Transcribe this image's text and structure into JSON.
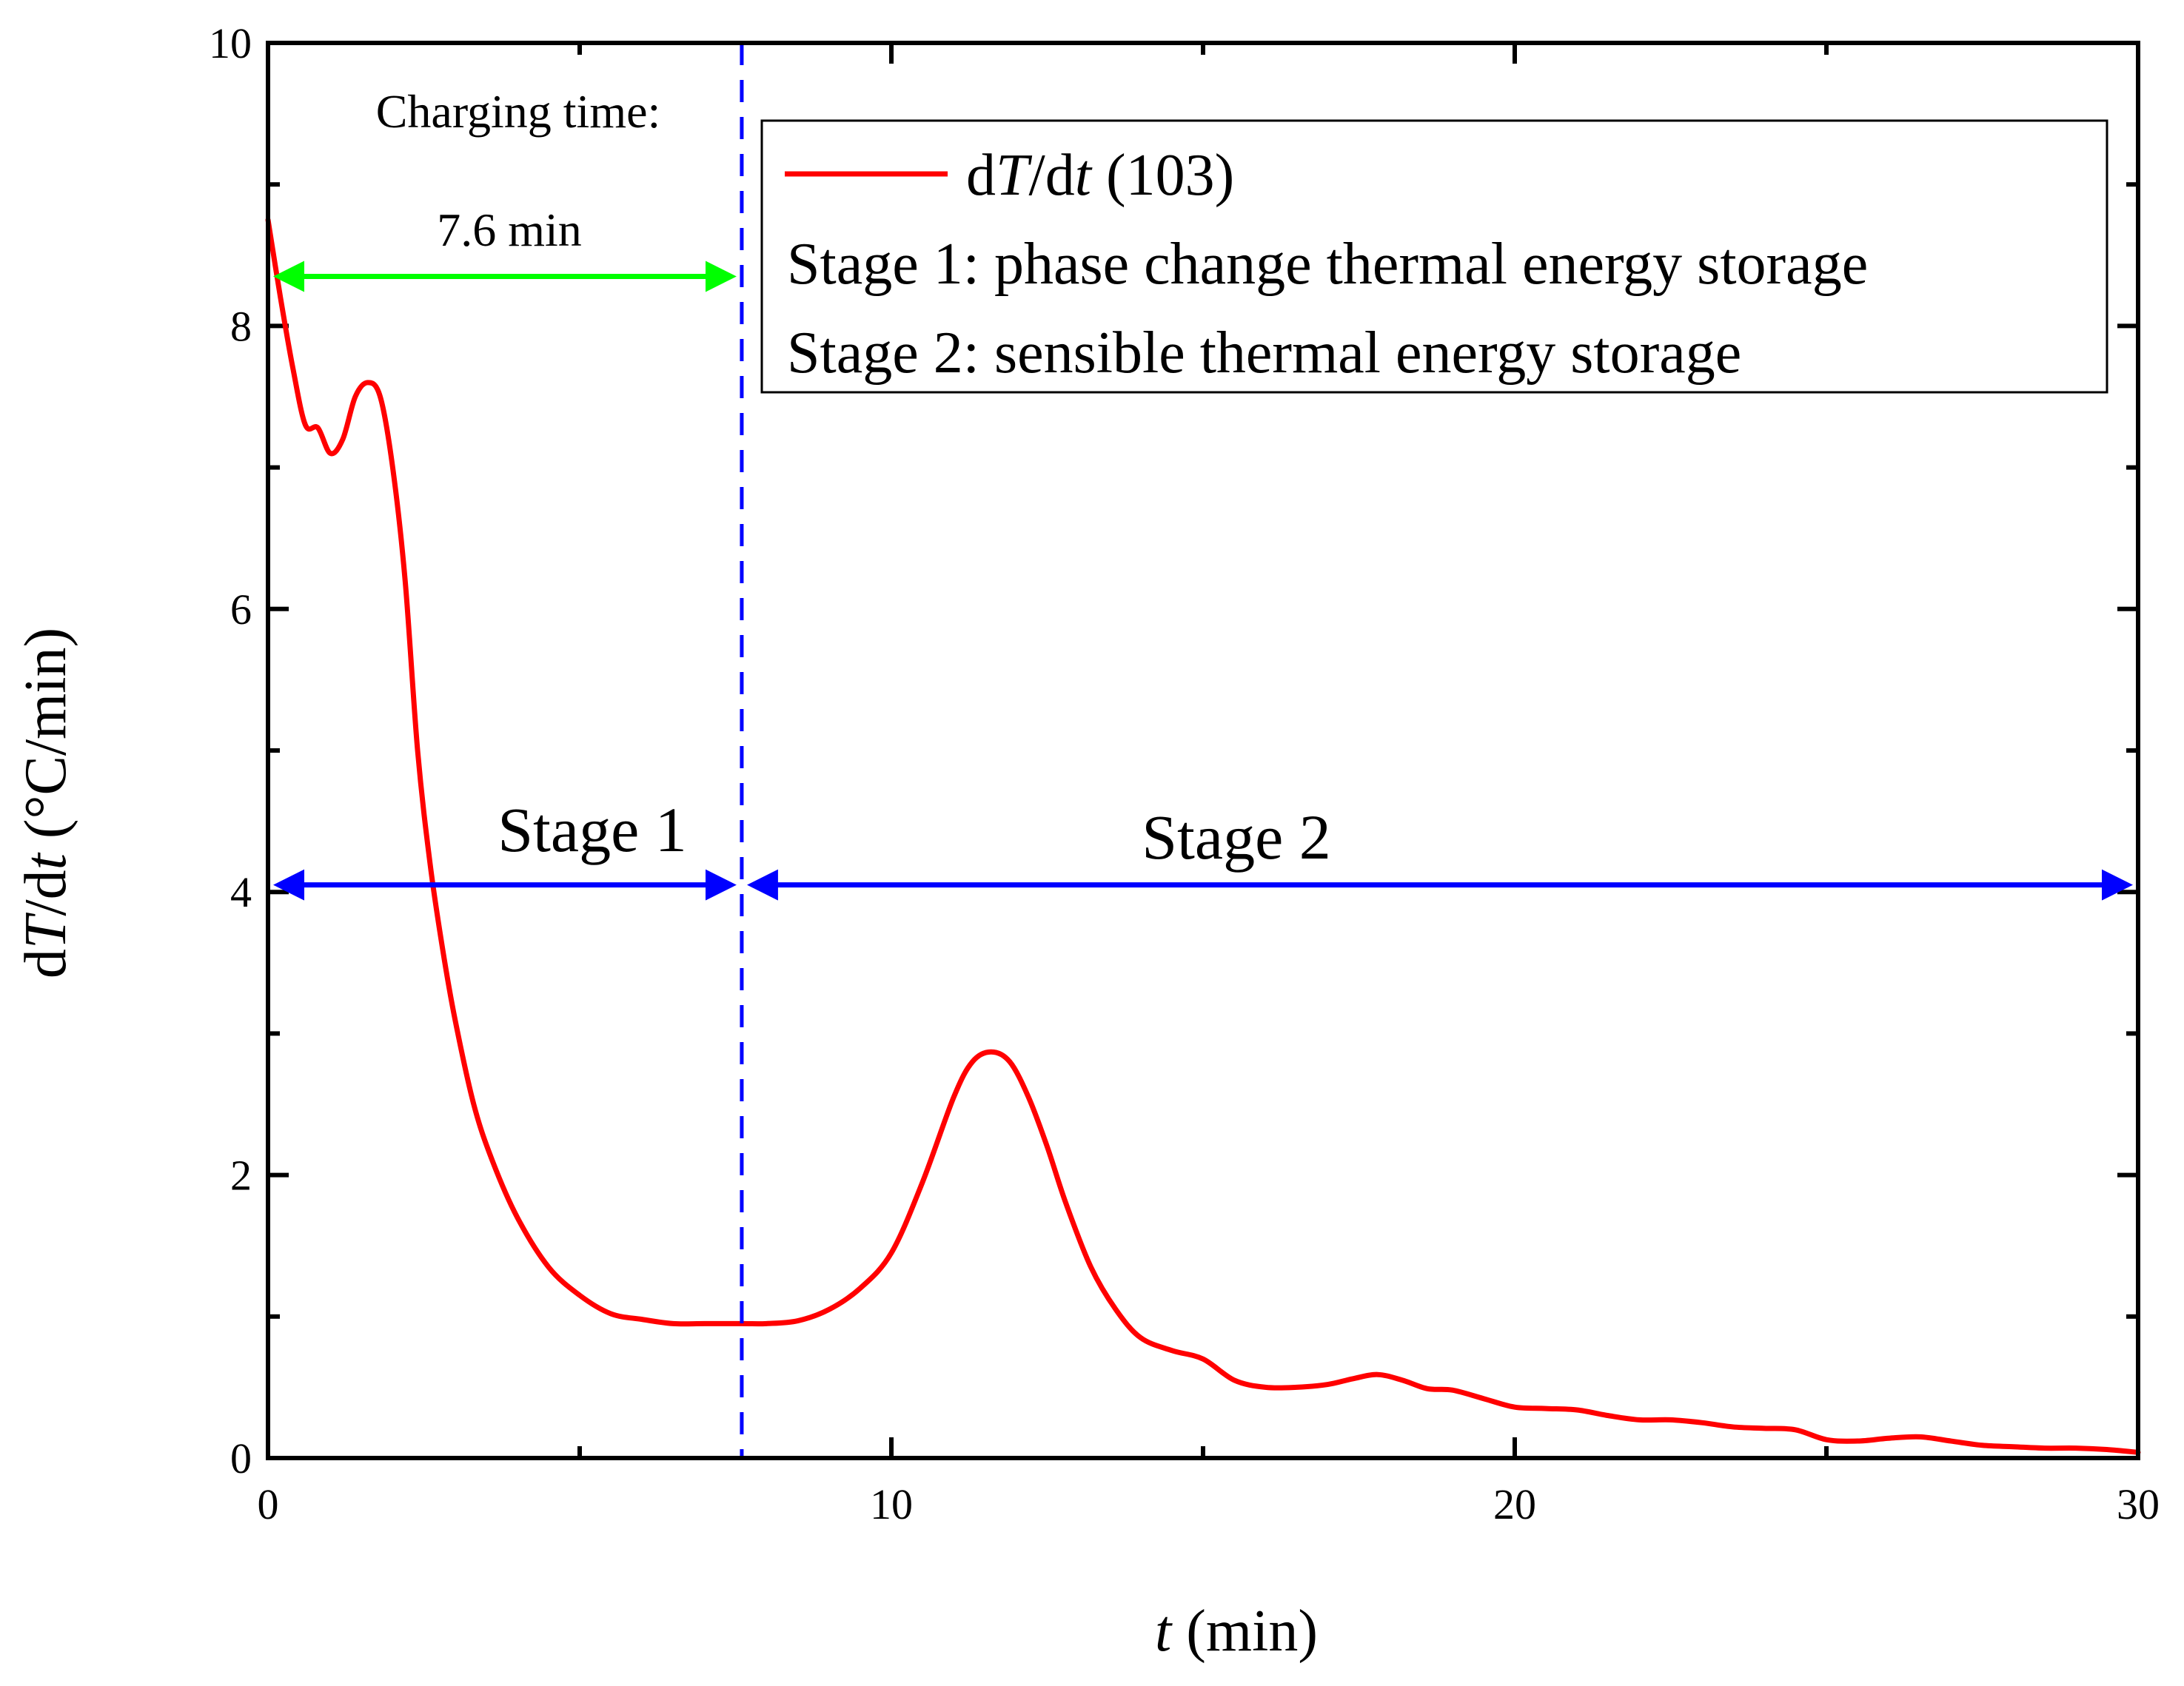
{
  "chart_data": {
    "type": "line",
    "x_axis": {
      "label_var": "t",
      "label_unit": " (min)",
      "range": [
        0,
        30
      ],
      "ticks": [
        0,
        10,
        20,
        30
      ],
      "tick_labels": [
        "0",
        "10",
        "20",
        "30"
      ]
    },
    "y_axis": {
      "label_prefix": "d",
      "label_var1": "T",
      "label_mid": "/d",
      "label_var2": "t",
      "label_unit": " (°C/min)",
      "range": [
        0,
        10
      ],
      "ticks": [
        0,
        2,
        4,
        6,
        8,
        10
      ],
      "tick_labels": [
        "0",
        "2",
        "4",
        "6",
        "8",
        "10"
      ]
    },
    "series": [
      {
        "name": "dT/dt (103)",
        "color": "#ff0000",
        "x": [
          0,
          0.2,
          0.4,
          0.6,
          0.8,
          1.0,
          1.2,
          1.4,
          1.6,
          1.8,
          2.0,
          2.2,
          2.4,
          2.6,
          2.8,
          3.0,
          3.3,
          3.6,
          4.0,
          4.5,
          5.0,
          5.5,
          6.0,
          6.5,
          7.0,
          7.6,
          8.0,
          8.5,
          9.0,
          9.5,
          10.0,
          10.5,
          11.0,
          11.3,
          11.6,
          11.9,
          12.2,
          12.5,
          12.8,
          13.2,
          13.6,
          14.0,
          14.5,
          15.0,
          15.5,
          16.0,
          16.5,
          17.0,
          17.4,
          17.8,
          18.2,
          18.6,
          19.0,
          19.5,
          20.0,
          20.5,
          21.0,
          21.5,
          22.0,
          22.5,
          23.0,
          23.5,
          24.0,
          24.5,
          25.0,
          25.5,
          26.0,
          26.5,
          27.0,
          27.5,
          28.0,
          28.5,
          29.0,
          29.5,
          30.0
        ],
        "y": [
          8.75,
          8.2,
          7.7,
          7.3,
          7.28,
          7.1,
          7.2,
          7.5,
          7.6,
          7.5,
          7.0,
          6.2,
          5.0,
          4.2,
          3.6,
          3.1,
          2.5,
          2.1,
          1.7,
          1.35,
          1.15,
          1.02,
          0.98,
          0.95,
          0.95,
          0.95,
          0.95,
          0.97,
          1.05,
          1.2,
          1.45,
          1.95,
          2.55,
          2.8,
          2.87,
          2.8,
          2.55,
          2.2,
          1.8,
          1.35,
          1.05,
          0.85,
          0.76,
          0.7,
          0.55,
          0.5,
          0.5,
          0.52,
          0.56,
          0.59,
          0.55,
          0.49,
          0.48,
          0.42,
          0.36,
          0.35,
          0.34,
          0.3,
          0.27,
          0.27,
          0.25,
          0.22,
          0.21,
          0.2,
          0.13,
          0.12,
          0.14,
          0.15,
          0.12,
          0.09,
          0.08,
          0.07,
          0.07,
          0.06,
          0.04
        ]
      }
    ],
    "vertical_marker": {
      "x": 7.6,
      "style": "dashed",
      "color": "#0000ff"
    },
    "annotations": {
      "charging_label": "Charging time:",
      "charging_value": "7.6 min",
      "charging_arrow": {
        "x_from": 0,
        "x_to": 7.6,
        "y": 8.35,
        "color": "#00ff00"
      },
      "stage1_label": "Stage 1",
      "stage2_label": "Stage 2",
      "stage_arrow_y": 4.05,
      "stage_arrow_color": "#0000ff"
    },
    "legend": {
      "position": "top-right",
      "series_prefix": "d",
      "series_var1": "T",
      "series_mid": "/d",
      "series_var2": "t",
      "series_suffix": " (103)",
      "lines": [
        "Stage 1: phase change thermal energy storage",
        "Stage 2: sensible thermal energy storage"
      ]
    }
  }
}
